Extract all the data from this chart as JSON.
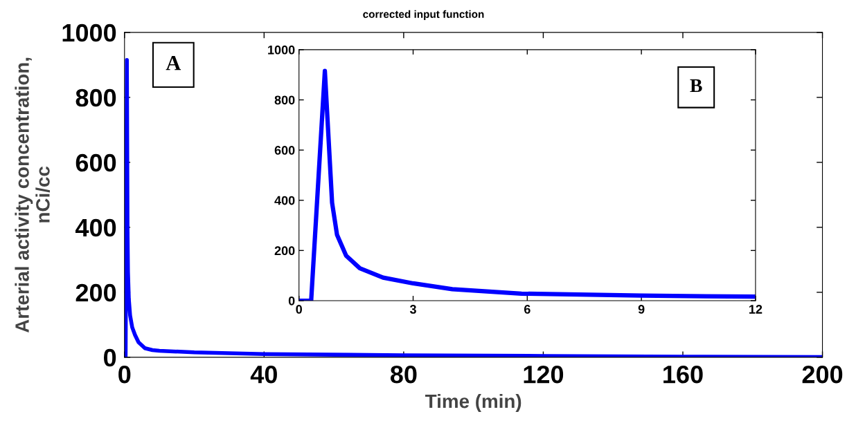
{
  "chart_data": [
    {
      "type": "line",
      "title": "corrected input function",
      "xlabel": "Time (min)",
      "ylabel": "Arterial activity concentration,\nnCi/cc",
      "x": [
        0,
        0.32,
        0.68,
        0.87,
        1.0,
        1.24,
        1.6,
        2.21,
        3,
        4.03,
        5.85,
        8,
        10,
        20,
        40,
        80,
        120,
        160,
        200
      ],
      "series": [
        {
          "color": "#0000ff",
          "values": [
            0,
            0,
            915,
            390,
            262,
            179,
            129,
            92,
            69,
            46,
            28,
            22,
            20,
            15,
            10,
            6,
            4,
            2,
            1
          ]
        }
      ],
      "xlim": [
        0,
        200
      ],
      "xticks": [
        0,
        40,
        80,
        120,
        160,
        200
      ],
      "ylim": [
        0,
        1000
      ],
      "yticks": [
        0,
        200,
        400,
        600,
        800,
        1000
      ],
      "annotations": [
        "A"
      ]
    },
    {
      "type": "line",
      "x": [
        0,
        0.32,
        0.68,
        0.87,
        1.0,
        1.24,
        1.6,
        2.21,
        3,
        4.03,
        5.85,
        9,
        12
      ],
      "series": [
        {
          "color": "#0000ff",
          "values": [
            0,
            0,
            915,
            390,
            262,
            179,
            129,
            92,
            69,
            46,
            28,
            20,
            16
          ]
        }
      ],
      "xlim": [
        0,
        12
      ],
      "xticks": [
        0,
        3,
        6,
        9,
        12
      ],
      "ylim": [
        0,
        1000
      ],
      "yticks": [
        0,
        200,
        400,
        600,
        800,
        1000
      ],
      "annotations": [
        "B"
      ]
    }
  ]
}
